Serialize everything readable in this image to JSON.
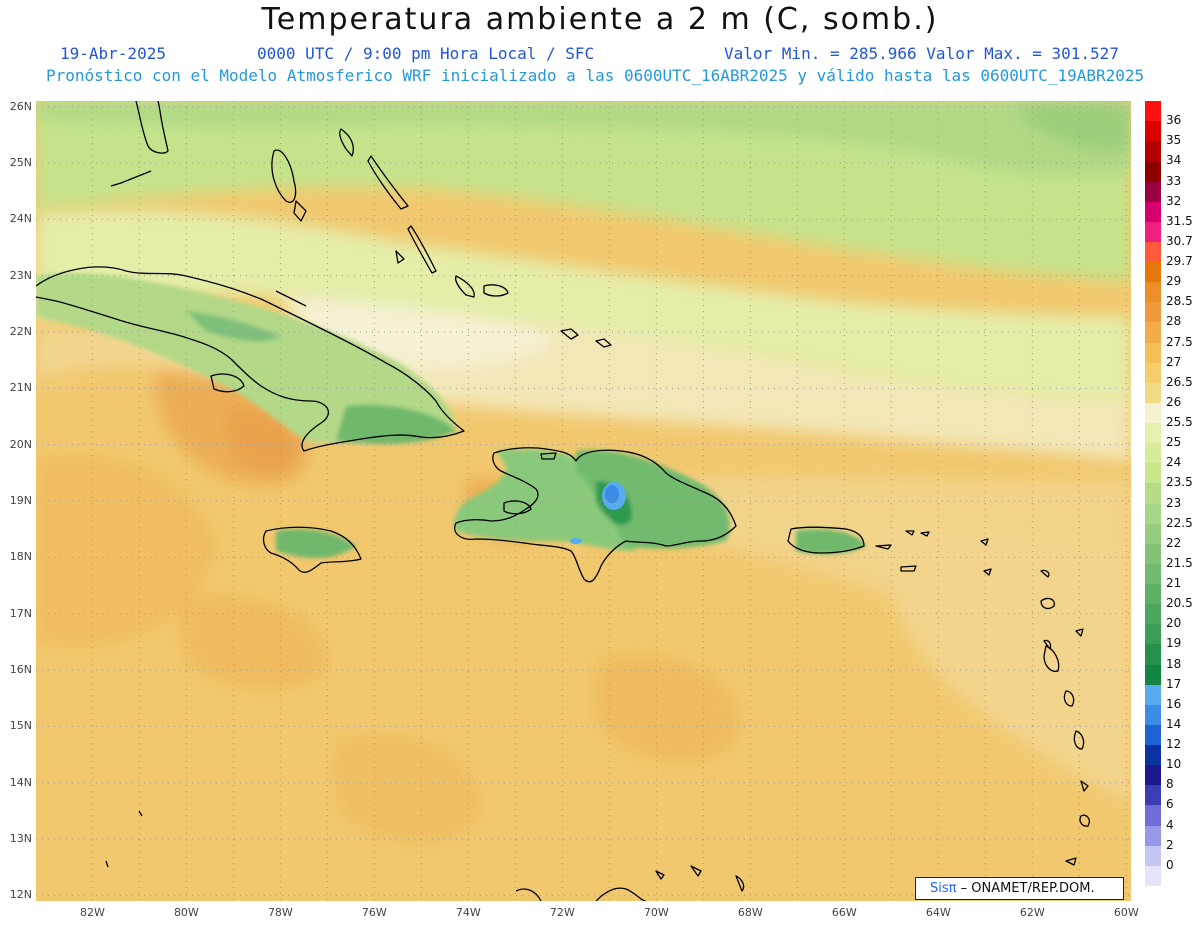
{
  "header": {
    "title": "Temperatura ambiente a 2 m (C, somb.)",
    "date": "19-Abr-2025",
    "time": "0000 UTC / 9:00 pm Hora Local / SFC",
    "minmax": "Valor Min. = 285.966  Valor Max. = 301.527",
    "model_info": "Pronóstico con el Modelo Atmosferico WRF inicializado a las 0600UTC_16ABR2025 y válido hasta las  0600UTC_19ABR2025"
  },
  "map": {
    "lat_labels": [
      "26N",
      "25N",
      "24N",
      "23N",
      "22N",
      "21N",
      "20N",
      "19N",
      "18N",
      "17N",
      "16N",
      "15N",
      "14N",
      "13N",
      "12N"
    ],
    "lon_labels": [
      "82W",
      "80W",
      "78W",
      "76W",
      "74W",
      "72W",
      "70W",
      "68W",
      "66W",
      "64W",
      "62W",
      "60W"
    ],
    "extent": {
      "lon_min": -83.2,
      "lon_max": -59.9,
      "lat_min": 11.9,
      "lat_max": 26.1
    },
    "ocean_base_color": "#f1c86e",
    "coastline_color": "#000000",
    "grid_color": "#9a9a9a"
  },
  "colorbar": {
    "levels": [
      {
        "label": "36",
        "color": "#ff1010"
      },
      {
        "label": "35",
        "color": "#dd0000"
      },
      {
        "label": "34",
        "color": "#b40000"
      },
      {
        "label": "33",
        "color": "#8c0000"
      },
      {
        "label": "32",
        "color": "#9a0040"
      },
      {
        "label": "31.5",
        "color": "#d6006e"
      },
      {
        "label": "30.7",
        "color": "#f01e7d"
      },
      {
        "label": "29.7",
        "color": "#ff5a3c"
      },
      {
        "label": "29",
        "color": "#e6780a"
      },
      {
        "label": "28.5",
        "color": "#ec8f28"
      },
      {
        "label": "28",
        "color": "#f09a3c"
      },
      {
        "label": "27.5",
        "color": "#f2ac4a"
      },
      {
        "label": "27",
        "color": "#f4bf55"
      },
      {
        "label": "26.5",
        "color": "#f5cd6b"
      },
      {
        "label": "26",
        "color": "#f0da86"
      },
      {
        "label": "25.5",
        "color": "#f5f2d2"
      },
      {
        "label": "25",
        "color": "#e6efae"
      },
      {
        "label": "24",
        "color": "#d8eb9a"
      },
      {
        "label": "23.5",
        "color": "#c8e68c"
      },
      {
        "label": "23",
        "color": "#b6dc88"
      },
      {
        "label": "22.5",
        "color": "#a6d488"
      },
      {
        "label": "22",
        "color": "#96cc80"
      },
      {
        "label": "21.5",
        "color": "#84c278"
      },
      {
        "label": "21",
        "color": "#72ba70"
      },
      {
        "label": "20.5",
        "color": "#5fb066"
      },
      {
        "label": "20",
        "color": "#4ca65e"
      },
      {
        "label": "19",
        "color": "#3a9c56"
      },
      {
        "label": "18",
        "color": "#24904c"
      },
      {
        "label": "17",
        "color": "#108440"
      },
      {
        "label": "16",
        "color": "#5aaaf0"
      },
      {
        "label": "14",
        "color": "#3c8ce6"
      },
      {
        "label": "12",
        "color": "#1e64d2"
      },
      {
        "label": "10",
        "color": "#0a32a0"
      },
      {
        "label": "8",
        "color": "#1a1a8c"
      },
      {
        "label": "6",
        "color": "#3c3cb4"
      },
      {
        "label": "4",
        "color": "#6e6ed6"
      },
      {
        "label": "2",
        "color": "#9898e8"
      },
      {
        "label": "0",
        "color": "#c6c6f4"
      },
      {
        "label": "",
        "color": "#e4e4fa"
      }
    ]
  },
  "credit": {
    "sis": "Sisπ",
    "text": "– ONAMET/REP.DOM."
  }
}
